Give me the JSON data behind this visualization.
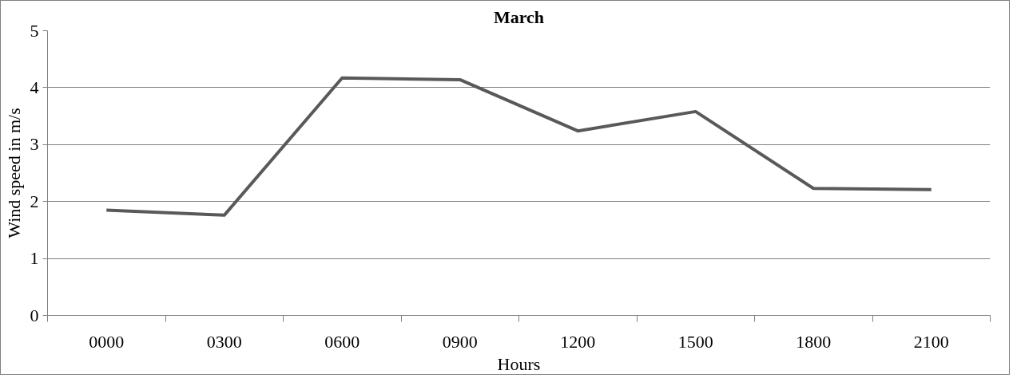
{
  "chart_data": {
    "type": "line",
    "title": "March",
    "xlabel": "Hours",
    "ylabel": "Wind speed in m/s",
    "categories": [
      "0000",
      "0300",
      "0600",
      "0900",
      "1200",
      "1500",
      "1800",
      "2100"
    ],
    "series": [
      {
        "color": "#595959",
        "values": [
          1.85,
          1.76,
          4.17,
          4.14,
          3.24,
          3.58,
          2.23,
          2.21
        ]
      }
    ],
    "ylim": [
      0,
      5
    ],
    "yticks": [
      0,
      1,
      2,
      3,
      4,
      5
    ],
    "grid": "y",
    "marker": "none",
    "line_style": "solid"
  }
}
